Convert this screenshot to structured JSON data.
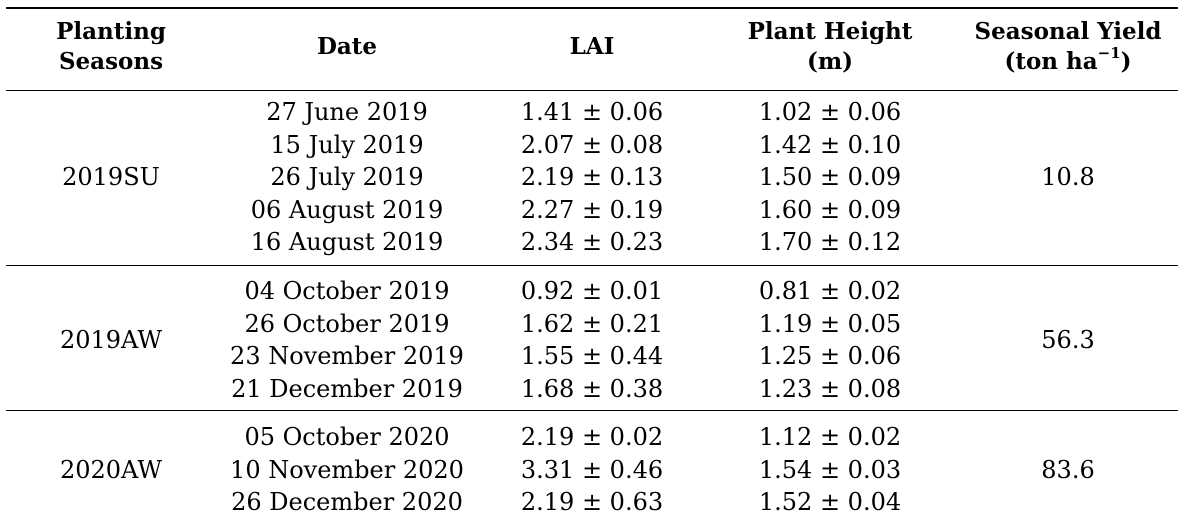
{
  "header": {
    "season_line1": "Planting",
    "season_line2": "Seasons",
    "date": "Date",
    "lai": "LAI",
    "height_line1": "Plant Height",
    "height_line2": "(m)",
    "yield_line1": "Seasonal Yield",
    "yield_line2_prefix": "(ton ha",
    "yield_line2_sup": "−1",
    "yield_line2_suffix": ")"
  },
  "groups": [
    {
      "season": "2019SU",
      "yield": "10.8",
      "rows": [
        {
          "date": "27 June 2019",
          "lai": "1.41 ± 0.06",
          "height": "1.02 ± 0.06"
        },
        {
          "date": "15 July 2019",
          "lai": "2.07 ± 0.08",
          "height": "1.42 ± 0.10"
        },
        {
          "date": "26 July 2019",
          "lai": "2.19 ± 0.13",
          "height": "1.50 ± 0.09"
        },
        {
          "date": "06 August 2019",
          "lai": "2.27 ± 0.19",
          "height": "1.60 ± 0.09"
        },
        {
          "date": "16 August 2019",
          "lai": "2.34 ± 0.23",
          "height": "1.70 ± 0.12"
        }
      ]
    },
    {
      "season": "2019AW",
      "yield": "56.3",
      "rows": [
        {
          "date": "04 October 2019",
          "lai": "0.92 ± 0.01",
          "height": "0.81 ± 0.02"
        },
        {
          "date": "26 October 2019",
          "lai": "1.62 ± 0.21",
          "height": "1.19 ± 0.05"
        },
        {
          "date": "23 November 2019",
          "lai": "1.55 ± 0.44",
          "height": "1.25 ± 0.06"
        },
        {
          "date": "21 December 2019",
          "lai": "1.68 ± 0.38",
          "height": "1.23 ± 0.08"
        }
      ]
    },
    {
      "season": "2020AW",
      "yield": "83.6",
      "rows": [
        {
          "date": "05 October 2020",
          "lai": "2.19 ± 0.02",
          "height": "1.12 ± 0.02"
        },
        {
          "date": "10 November 2020",
          "lai": "3.31 ± 0.46",
          "height": "1.54 ± 0.03"
        },
        {
          "date": "26 December 2020",
          "lai": "2.19 ± 0.63",
          "height": "1.52 ± 0.04"
        }
      ]
    }
  ]
}
